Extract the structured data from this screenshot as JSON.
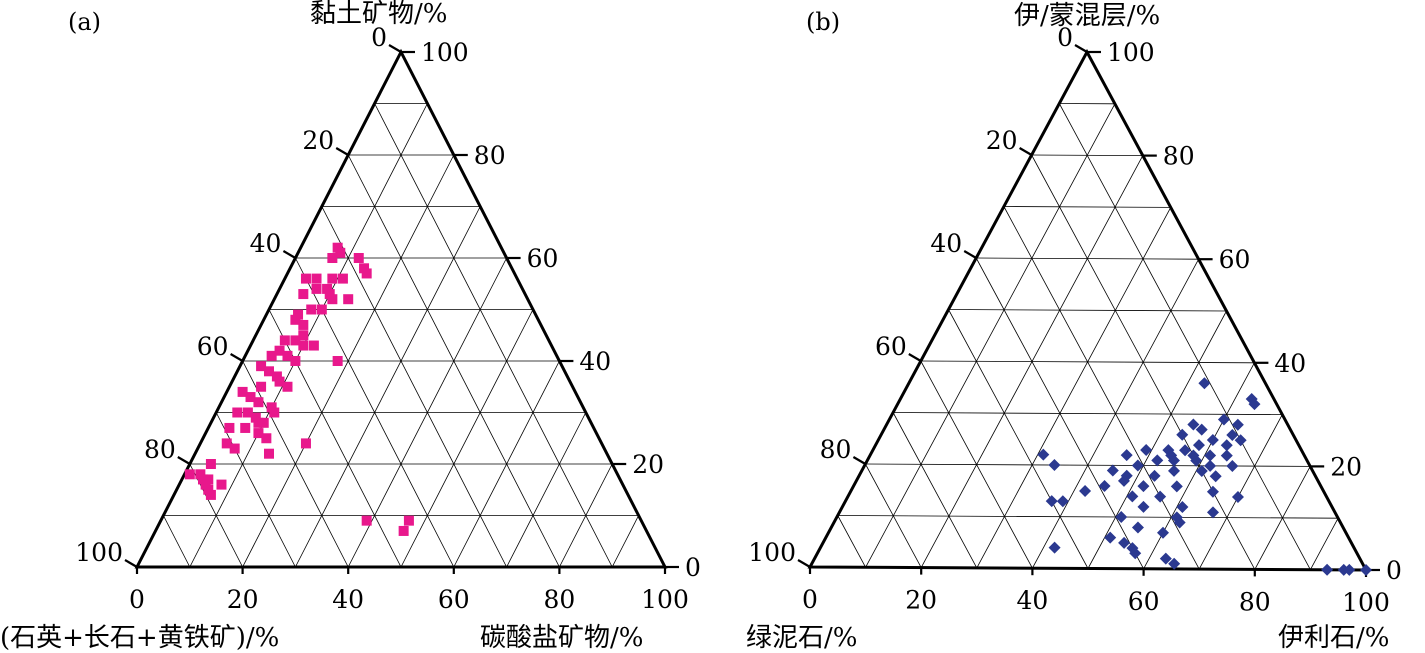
{
  "chart_data": [
    {
      "type": "scatter",
      "subtype": "ternary",
      "panel_label": "(a)",
      "axes": {
        "top": "黏土矿物/%",
        "left": "(石英+长石+黄铁矿)/%",
        "right": "碳酸盐矿物/%"
      },
      "ticks": {
        "bottom": [
          "0",
          "20",
          "40",
          "60",
          "80",
          "100"
        ],
        "left": [
          "0",
          "20",
          "40",
          "60",
          "80",
          "100"
        ],
        "right": [
          "0",
          "20",
          "40",
          "60",
          "80",
          "100"
        ]
      },
      "grid_step": 10,
      "marker": "square",
      "color": "#e8188c",
      "points": [
        {
          "clay": 62,
          "carb": 7
        },
        {
          "clay": 61,
          "carb": 8
        },
        {
          "clay": 60,
          "carb": 7
        },
        {
          "clay": 60,
          "carb": 12
        },
        {
          "clay": 58,
          "carb": 14
        },
        {
          "clay": 57,
          "carb": 15
        },
        {
          "clay": 56,
          "carb": 4
        },
        {
          "clay": 56,
          "carb": 6
        },
        {
          "clay": 56,
          "carb": 9
        },
        {
          "clay": 56,
          "carb": 11
        },
        {
          "clay": 54,
          "carb": 7
        },
        {
          "clay": 54,
          "carb": 9
        },
        {
          "clay": 53,
          "carb": 5
        },
        {
          "clay": 53,
          "carb": 10
        },
        {
          "clay": 52,
          "carb": 11
        },
        {
          "clay": 52,
          "carb": 14
        },
        {
          "clay": 50,
          "carb": 8
        },
        {
          "clay": 50,
          "carb": 10
        },
        {
          "clay": 49,
          "carb": 6
        },
        {
          "clay": 48,
          "carb": 6
        },
        {
          "clay": 47,
          "carb": 8
        },
        {
          "clay": 45,
          "carb": 9
        },
        {
          "clay": 44,
          "carb": 6
        },
        {
          "clay": 44,
          "carb": 8
        },
        {
          "clay": 43,
          "carb": 10
        },
        {
          "clay": 43,
          "carb": 12
        },
        {
          "clay": 42,
          "carb": 6
        },
        {
          "clay": 41,
          "carb": 5
        },
        {
          "clay": 41,
          "carb": 8
        },
        {
          "clay": 40,
          "carb": 10
        },
        {
          "clay": 40,
          "carb": 18
        },
        {
          "clay": 39,
          "carb": 4
        },
        {
          "clay": 38,
          "carb": 6
        },
        {
          "clay": 37,
          "carb": 8
        },
        {
          "clay": 36,
          "carb": 9
        },
        {
          "clay": 35,
          "carb": 6
        },
        {
          "clay": 35,
          "carb": 11
        },
        {
          "clay": 34,
          "carb": 3
        },
        {
          "clay": 33,
          "carb": 5
        },
        {
          "clay": 32,
          "carb": 7
        },
        {
          "clay": 31,
          "carb": 10
        },
        {
          "clay": 30,
          "carb": 6
        },
        {
          "clay": 30,
          "carb": 11
        },
        {
          "clay": 30,
          "carb": 4
        },
        {
          "clay": 29,
          "carb": 8
        },
        {
          "clay": 28,
          "carb": 9
        },
        {
          "clay": 28,
          "carb": 10
        },
        {
          "clay": 27,
          "carb": 4
        },
        {
          "clay": 27,
          "carb": 7
        },
        {
          "clay": 26,
          "carb": 10
        },
        {
          "clay": 25,
          "carb": 12
        },
        {
          "clay": 24,
          "carb": 20
        },
        {
          "clay": 24,
          "carb": 5
        },
        {
          "clay": 23,
          "carb": 7
        },
        {
          "clay": 22,
          "carb": 14
        },
        {
          "clay": 20,
          "carb": 4
        },
        {
          "clay": 18,
          "carb": 3
        },
        {
          "clay": 17,
          "carb": 4
        },
        {
          "clay": 16,
          "carb": 5
        },
        {
          "clay": 16,
          "carb": 8
        },
        {
          "clay": 15,
          "carb": 6
        },
        {
          "clay": 14,
          "carb": 7
        },
        {
          "clay": 18,
          "carb": 1
        },
        {
          "clay": 17,
          "carb": 5
        },
        {
          "clay": 9,
          "carb": 39
        },
        {
          "clay": 9,
          "carb": 47
        },
        {
          "clay": 7,
          "carb": 47
        }
      ]
    },
    {
      "type": "scatter",
      "subtype": "ternary",
      "panel_label": "(b)",
      "axes": {
        "top": "伊/蒙混层/%",
        "left": "绿泥石/%",
        "right": "伊利石/%"
      },
      "ticks": {
        "bottom": [
          "0",
          "20",
          "40",
          "60",
          "80",
          "100"
        ],
        "left": [
          "0",
          "20",
          "40",
          "60",
          "80",
          "100"
        ],
        "right": [
          "0",
          "20",
          "40",
          "60",
          "80",
          "100"
        ]
      },
      "grid_step": 10,
      "marker": "diamond",
      "color": "#2b3990",
      "points": [
        {
          "ims": 36,
          "ill": 53
        },
        {
          "ims": 33,
          "ill": 63
        },
        {
          "ims": 32,
          "ill": 64
        },
        {
          "ims": 29,
          "ill": 60
        },
        {
          "ims": 28,
          "ill": 63
        },
        {
          "ims": 28,
          "ill": 55
        },
        {
          "ims": 27,
          "ill": 57
        },
        {
          "ims": 26,
          "ill": 54
        },
        {
          "ims": 26,
          "ill": 63
        },
        {
          "ims": 25,
          "ill": 60
        },
        {
          "ims": 25,
          "ill": 65
        },
        {
          "ims": 24,
          "ill": 58
        },
        {
          "ims": 24,
          "ill": 63
        },
        {
          "ims": 23,
          "ill": 49
        },
        {
          "ims": 23,
          "ill": 53
        },
        {
          "ims": 23,
          "ill": 56
        },
        {
          "ims": 22,
          "ill": 46
        },
        {
          "ims": 22,
          "ill": 54
        },
        {
          "ims": 22,
          "ill": 58
        },
        {
          "ims": 22,
          "ill": 61
        },
        {
          "ims": 22,
          "ill": 64
        },
        {
          "ims": 21,
          "ill": 52
        },
        {
          "ims": 21,
          "ill": 55
        },
        {
          "ims": 21,
          "ill": 59
        },
        {
          "ims": 20,
          "ill": 62
        },
        {
          "ims": 20,
          "ill": 66
        },
        {
          "ims": 22,
          "ill": 31
        },
        {
          "ims": 20,
          "ill": 34
        },
        {
          "ims": 20,
          "ill": 49
        },
        {
          "ims": 19,
          "ill": 45
        },
        {
          "ims": 19,
          "ill": 56
        },
        {
          "ims": 19,
          "ill": 61
        },
        {
          "ims": 18,
          "ill": 48
        },
        {
          "ims": 18,
          "ill": 53
        },
        {
          "ims": 18,
          "ill": 64
        },
        {
          "ims": 17,
          "ill": 48
        },
        {
          "ims": 16,
          "ill": 45
        },
        {
          "ims": 16,
          "ill": 52
        },
        {
          "ims": 16,
          "ill": 58
        },
        {
          "ims": 15,
          "ill": 42
        },
        {
          "ims": 15,
          "ill": 65
        },
        {
          "ims": 14,
          "ill": 51
        },
        {
          "ims": 14,
          "ill": 56
        },
        {
          "ims": 13,
          "ill": 37
        },
        {
          "ims": 13,
          "ill": 39
        },
        {
          "ims": 12,
          "ill": 54
        },
        {
          "ims": 12,
          "ill": 61
        },
        {
          "ims": 11,
          "ill": 67
        },
        {
          "ims": 10,
          "ill": 51
        },
        {
          "ims": 10,
          "ill": 61
        },
        {
          "ims": 9,
          "ill": 62
        },
        {
          "ims": 8,
          "ill": 55
        },
        {
          "ims": 7,
          "ill": 60
        },
        {
          "ims": 6,
          "ill": 51
        },
        {
          "ims": 5,
          "ill": 54
        },
        {
          "ims": 4,
          "ill": 42
        },
        {
          "ims": 4,
          "ill": 56
        },
        {
          "ims": 3,
          "ill": 57
        },
        {
          "ims": 2,
          "ill": 63
        },
        {
          "ims": 1,
          "ill": 65
        },
        {
          "ims": 0,
          "ill": 96
        },
        {
          "ims": 0,
          "ill": 97
        },
        {
          "ims": 0,
          "ill": 100
        },
        {
          "ims": 0,
          "ill": 93
        },
        {
          "ims": 14,
          "ill": 70
        }
      ]
    }
  ]
}
